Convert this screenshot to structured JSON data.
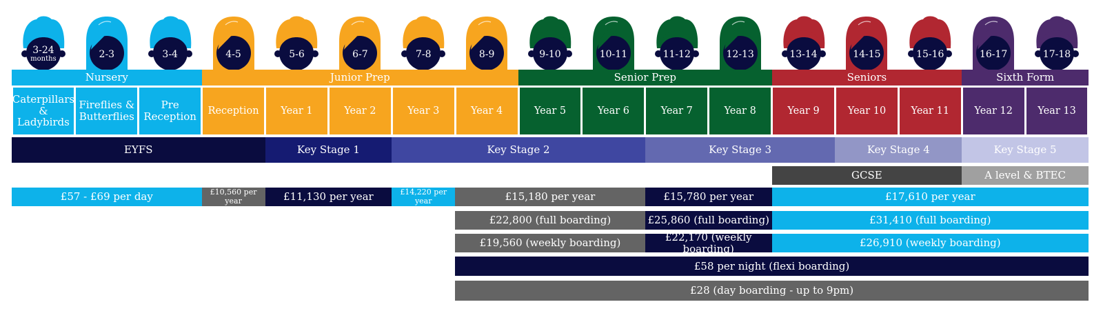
{
  "colors": {
    "nursery": "#0db2ea",
    "junior": "#f7a51f",
    "senior_prep": "#06612f",
    "seniors": "#b12731",
    "sixth": "#4d2b6c",
    "navy": "#0a0c3f",
    "ks1": "#151b72",
    "ks2": "#3f47a1",
    "ks3": "#6369b0",
    "ks4": "#9296c6",
    "ks5": "#c2c5e6",
    "dark_grey": "#444444",
    "mid_grey": "#646464",
    "light_grey": "#a0a0a0",
    "face": "#0a0c3f"
  },
  "heads": [
    {
      "age": "3-24",
      "sub": "months",
      "hair": "nursery",
      "style": "short"
    },
    {
      "age": "2-3",
      "hair": "nursery",
      "style": "long"
    },
    {
      "age": "3-4",
      "hair": "nursery",
      "style": "short"
    },
    {
      "age": "4-5",
      "hair": "junior",
      "style": "long"
    },
    {
      "age": "5-6",
      "hair": "junior",
      "style": "short"
    },
    {
      "age": "6-7",
      "hair": "junior",
      "style": "long"
    },
    {
      "age": "7-8",
      "hair": "junior",
      "style": "short"
    },
    {
      "age": "8-9",
      "hair": "junior",
      "style": "long"
    },
    {
      "age": "9-10",
      "hair": "senior_prep",
      "style": "short"
    },
    {
      "age": "10-11",
      "hair": "senior_prep",
      "style": "long"
    },
    {
      "age": "11-12",
      "hair": "senior_prep",
      "style": "short"
    },
    {
      "age": "12-13",
      "hair": "senior_prep",
      "style": "long"
    },
    {
      "age": "13-14",
      "hair": "seniors",
      "style": "short"
    },
    {
      "age": "14-15",
      "hair": "seniors",
      "style": "long"
    },
    {
      "age": "15-16",
      "hair": "seniors",
      "style": "short"
    },
    {
      "age": "16-17",
      "hair": "sixth",
      "style": "long"
    },
    {
      "age": "17-18",
      "hair": "sixth",
      "style": "short"
    }
  ],
  "sections": [
    {
      "label": "Nursery",
      "from": 0,
      "to": 3,
      "color": "nursery"
    },
    {
      "label": "Junior Prep",
      "from": 3,
      "to": 8,
      "color": "junior"
    },
    {
      "label": "Senior Prep",
      "from": 8,
      "to": 12,
      "color": "senior_prep"
    },
    {
      "label": "Seniors",
      "from": 12,
      "to": 15,
      "color": "seniors"
    },
    {
      "label": "Sixth Form",
      "from": 15,
      "to": 17,
      "color": "sixth"
    }
  ],
  "years": [
    {
      "label": "Caterpillars\n& Ladybirds",
      "color": "nursery"
    },
    {
      "label": "Fireflies &\nButterflies",
      "color": "nursery"
    },
    {
      "label": "Pre\nReception",
      "color": "nursery"
    },
    {
      "label": "Reception",
      "color": "junior"
    },
    {
      "label": "Year 1",
      "color": "junior"
    },
    {
      "label": "Year 2",
      "color": "junior"
    },
    {
      "label": "Year 3",
      "color": "junior"
    },
    {
      "label": "Year 4",
      "color": "junior"
    },
    {
      "label": "Year 5",
      "color": "senior_prep"
    },
    {
      "label": "Year 6",
      "color": "senior_prep"
    },
    {
      "label": "Year 7",
      "color": "senior_prep"
    },
    {
      "label": "Year 8",
      "color": "senior_prep"
    },
    {
      "label": "Year 9",
      "color": "seniors"
    },
    {
      "label": "Year 10",
      "color": "seniors"
    },
    {
      "label": "Year 11",
      "color": "seniors"
    },
    {
      "label": "Year 12",
      "color": "sixth"
    },
    {
      "label": "Year 13",
      "color": "sixth"
    }
  ],
  "key_stages": [
    {
      "label": "EYFS",
      "from": 0,
      "to": 4,
      "color": "navy"
    },
    {
      "label": "Key Stage 1",
      "from": 4,
      "to": 6,
      "color": "ks1"
    },
    {
      "label": "Key Stage 2",
      "from": 6,
      "to": 10,
      "color": "ks2"
    },
    {
      "label": "Key Stage 3",
      "from": 10,
      "to": 13,
      "color": "ks3"
    },
    {
      "label": "Key Stage 4",
      "from": 13,
      "to": 15,
      "color": "ks4"
    },
    {
      "label": "Key Stage 5",
      "from": 15,
      "to": 17,
      "color": "ks5"
    }
  ],
  "qualifications": [
    {
      "label": "GCSE",
      "from": 12,
      "to": 15,
      "color": "dark_grey"
    },
    {
      "label": "A level & BTEC",
      "from": 15,
      "to": 17,
      "color": "light_grey"
    }
  ],
  "fees": [
    [
      {
        "label": "£57 - £69 per day",
        "from": 0,
        "to": 3,
        "color": "nursery",
        "small": false
      },
      {
        "label": "£10,560 per year",
        "from": 3,
        "to": 4,
        "color": "mid_grey",
        "small": true
      },
      {
        "label": "£11,130 per year",
        "from": 4,
        "to": 6,
        "color": "navy",
        "small": false
      },
      {
        "label": "£14,220 per year",
        "from": 6,
        "to": 7,
        "color": "nursery",
        "small": true
      },
      {
        "label": "£15,180 per year",
        "from": 7,
        "to": 10,
        "color": "mid_grey",
        "small": false
      },
      {
        "label": "£15,780 per year",
        "from": 10,
        "to": 12,
        "color": "navy",
        "small": false
      },
      {
        "label": "£17,610 per year",
        "from": 12,
        "to": 17,
        "color": "nursery",
        "small": false
      }
    ],
    [
      {
        "label": "£22,800 (full boarding)",
        "from": 7,
        "to": 10,
        "color": "mid_grey",
        "small": false
      },
      {
        "label": "£25,860 (full boarding)",
        "from": 10,
        "to": 12,
        "color": "navy",
        "small": false
      },
      {
        "label": "£31,410 (full boarding)",
        "from": 12,
        "to": 17,
        "color": "nursery",
        "small": false
      }
    ],
    [
      {
        "label": "£19,560 (weekly boarding)",
        "from": 7,
        "to": 10,
        "color": "mid_grey",
        "small": false
      },
      {
        "label": "£22,170 (weekly boarding)",
        "from": 10,
        "to": 12,
        "color": "navy",
        "small": false
      },
      {
        "label": "£26,910 (weekly boarding)",
        "from": 12,
        "to": 17,
        "color": "nursery",
        "small": false
      }
    ],
    [
      {
        "label": "£58 per night (flexi boarding)",
        "from": 7,
        "to": 17,
        "color": "navy",
        "small": false
      }
    ],
    [
      {
        "label": "£28 (day boarding - up to 9pm)",
        "from": 7,
        "to": 17,
        "color": "mid_grey",
        "small": false
      }
    ]
  ]
}
